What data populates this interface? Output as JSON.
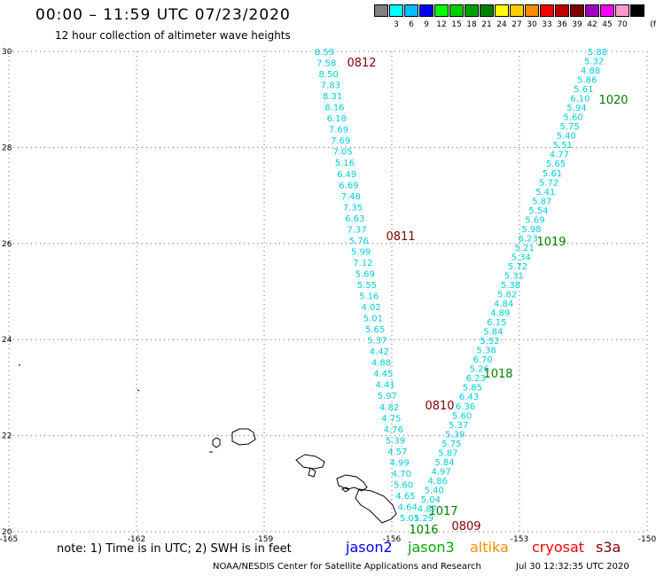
{
  "header": {
    "title": "00:00 – 11:59 UTC 07/23/2020",
    "subtitle": "12 hour collection of altimeter wave heights"
  },
  "legend": {
    "unit": "(ft)",
    "items": [
      {
        "color": "#808080",
        "label": ""
      },
      {
        "color": "#00ffff",
        "label": "3"
      },
      {
        "color": "#00bfff",
        "label": "6"
      },
      {
        "color": "#0000ff",
        "label": "9"
      },
      {
        "color": "#00ff00",
        "label": "12"
      },
      {
        "color": "#00cc00",
        "label": "15"
      },
      {
        "color": "#00a000",
        "label": "18"
      },
      {
        "color": "#008000",
        "label": "21"
      },
      {
        "color": "#ffff00",
        "label": "24"
      },
      {
        "color": "#ffcc00",
        "label": "27"
      },
      {
        "color": "#ff8c00",
        "label": "30"
      },
      {
        "color": "#ff0000",
        "label": "33"
      },
      {
        "color": "#c00000",
        "label": "36"
      },
      {
        "color": "#800000",
        "label": "39"
      },
      {
        "color": "#a000c0",
        "label": "42"
      },
      {
        "color": "#ff00ff",
        "label": "45"
      },
      {
        "color": "#ff99cc",
        "label": "70"
      },
      {
        "color": "#000000",
        "label": ""
      }
    ]
  },
  "map": {
    "lon_range": [
      -165,
      -150
    ],
    "lat_range": [
      20,
      30
    ],
    "x_ticks": [
      "-165",
      "-162",
      "-159",
      "-156",
      "-153",
      "-150"
    ],
    "y_ticks": [
      "30",
      "28",
      "26",
      "24",
      "22",
      "20"
    ],
    "grid": "dotted",
    "track_color": "#00ccdd",
    "track_west": {
      "values": [
        "8.59",
        "7.58",
        "8.50",
        "7.83",
        "8.31",
        "8.16",
        "6.18",
        "7.69",
        "7.69",
        "7.05",
        "5.16",
        "6.49",
        "6.69",
        "7.48",
        "7.35",
        "6.63",
        "7.37",
        "5.76",
        "5.99",
        "7.12",
        "5.69",
        "5.55",
        "5.16",
        "4.02",
        "5.01",
        "5.65",
        "5.37",
        "4.42",
        "4.88",
        "4.45",
        "4.41",
        "5.97",
        "4.82",
        "4.75",
        "4.76",
        "5.39",
        "4.57",
        "4.99",
        "4.70",
        "5.60",
        "4.65",
        "4.64",
        "5.01"
      ]
    },
    "track_east": {
      "values": [
        "5.88",
        "5.32",
        "4.88",
        "5.86",
        "5.61",
        "6.10",
        "5.94",
        "5.60",
        "5.75",
        "5.40",
        "5.51",
        "4.77",
        "5.65",
        "5.61",
        "5.72",
        "5.41",
        "5.87",
        "5.54",
        "5.69",
        "5.98",
        "6.23",
        "5.21",
        "5.34",
        "5.72",
        "5.31",
        "5.38",
        "5.82",
        "4.84",
        "4.89",
        "6.15",
        "5.84",
        "5.52",
        "5.38",
        "6.70",
        "5.26",
        "6.23",
        "5.85",
        "6.43",
        "6.36",
        "5.60",
        "5.37",
        "5.39",
        "5.75",
        "5.87",
        "5.84",
        "4.97",
        "4.86",
        "5.40",
        "5.04",
        "4.87",
        "5.29"
      ]
    },
    "time_labels": [
      {
        "text": "0812",
        "color": "#800000"
      },
      {
        "text": "0811",
        "color": "#800000"
      },
      {
        "text": "0810",
        "color": "#800000"
      },
      {
        "text": "0809",
        "color": "#800000"
      },
      {
        "text": "1020",
        "color": "#008000"
      },
      {
        "text": "1019",
        "color": "#008000"
      },
      {
        "text": "1018",
        "color": "#008000"
      },
      {
        "text": "1017",
        "color": "#008000"
      },
      {
        "text": "1016",
        "color": "#008000"
      }
    ]
  },
  "footer": {
    "note": "note: 1) Time is in UTC; 2) SWH is in feet",
    "satellites": [
      {
        "name": "jason2",
        "color": "#0000ff"
      },
      {
        "name": "jason3",
        "color": "#00aa00"
      },
      {
        "name": "altika",
        "color": "#ff8c00"
      },
      {
        "name": "cryosat",
        "color": "#ff0000"
      },
      {
        "name": "s3a",
        "color": "#800000"
      }
    ],
    "credit": "NOAA/NESDIS Center for Satellite Applications and Research",
    "timestamp": "Jul 30 12:32:35 UTC 2020"
  }
}
